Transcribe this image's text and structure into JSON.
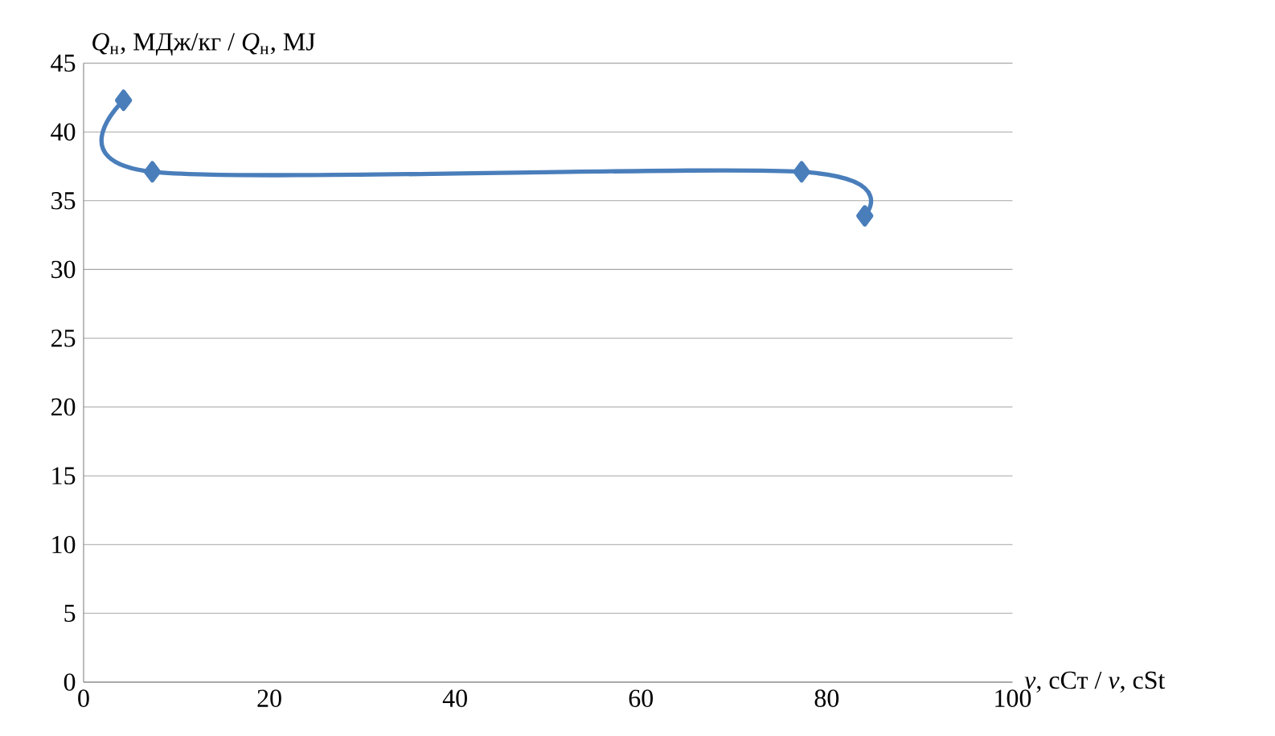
{
  "chart_data": {
    "type": "line",
    "xlabel": "*v*, сСт / *v*, cSt",
    "ylabel": "*Q*$_{н}$, МДж/кг / *Q*$_{н}$, MJ",
    "x": [
      4.3,
      7.4,
      77.3,
      84.1
    ],
    "values": [
      42.3,
      37.1,
      37.1,
      33.9
    ],
    "color": "#4a7ebb",
    "marker": "diamond",
    "line_style": "solid",
    "grid": "y",
    "xlim": [
      0,
      100
    ],
    "xticks": [
      0,
      20,
      40,
      60,
      80,
      100
    ],
    "ylim": [
      0,
      45
    ],
    "yticks": [
      0,
      5,
      10,
      15,
      20,
      25,
      30,
      35,
      40,
      45
    ]
  }
}
